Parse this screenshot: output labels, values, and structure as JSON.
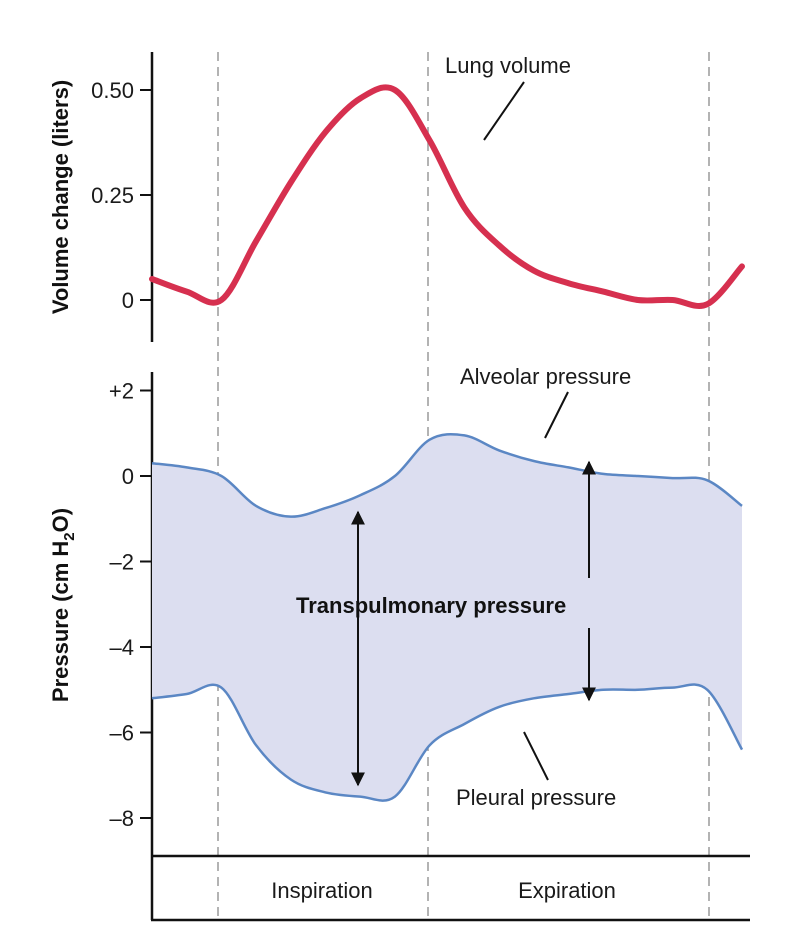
{
  "chart_data": [
    {
      "type": "line",
      "ylabel": "Volume change (liters)",
      "ylim": [
        -0.07,
        0.62
      ],
      "yticks": [
        "0.50",
        "0.25",
        "0"
      ],
      "ytick_values": [
        0.5,
        0.25,
        0
      ],
      "series": [
        {
          "name": "Lung volume",
          "color": "#d6304f",
          "x": [
            0,
            0.5,
            1.0,
            1.5,
            2.0,
            2.5,
            3.0,
            3.5,
            4.0,
            4.5,
            5.0,
            5.5,
            6.0,
            6.5,
            7.0,
            7.5,
            8.0,
            8.5
          ],
          "values": [
            0.05,
            0.02,
            0.0,
            0.14,
            0.28,
            0.4,
            0.48,
            0.5,
            0.38,
            0.22,
            0.13,
            0.07,
            0.04,
            0.02,
            0.0,
            0.0,
            -0.01,
            0.08
          ]
        }
      ]
    },
    {
      "type": "area",
      "ylabel": "Pressure (cm H₂O)",
      "ylim": [
        -8.9,
        2.6
      ],
      "yticks": [
        "+2",
        "0",
        "–2",
        "–4",
        "–6",
        "–8"
      ],
      "ytick_values": [
        2,
        0,
        -2,
        -4,
        -6,
        -8
      ],
      "fill_color": "#dcdef0",
      "series": [
        {
          "name": "Alveolar pressure",
          "color": "#5b87c4",
          "x": [
            0,
            0.5,
            1.0,
            1.5,
            2.0,
            2.5,
            3.0,
            3.5,
            4.0,
            4.5,
            5.0,
            5.5,
            6.0,
            6.5,
            7.0,
            7.5,
            8.0,
            8.5
          ],
          "values": [
            0.3,
            0.2,
            0.0,
            -0.7,
            -0.95,
            -0.75,
            -0.45,
            0.0,
            0.85,
            0.95,
            0.6,
            0.35,
            0.2,
            0.05,
            0.0,
            -0.05,
            -0.1,
            -0.7
          ]
        },
        {
          "name": "Pleural pressure",
          "color": "#5b87c4",
          "x": [
            0,
            0.5,
            1.0,
            1.5,
            2.0,
            2.5,
            3.0,
            3.5,
            4.0,
            4.5,
            5.0,
            5.5,
            6.0,
            6.5,
            7.0,
            7.5,
            8.0,
            8.5
          ],
          "values": [
            -5.2,
            -5.1,
            -4.95,
            -6.3,
            -7.1,
            -7.4,
            -7.5,
            -7.5,
            -6.3,
            -5.8,
            -5.4,
            -5.2,
            -5.1,
            -5.0,
            -5.0,
            -4.95,
            -5.0,
            -6.4
          ]
        }
      ]
    }
  ],
  "annotations": {
    "lung_volume": "Lung volume",
    "alveolar": "Alveolar pressure",
    "pleural": "Pleural pressure",
    "transpulmonary": "Transpulmonary pressure"
  },
  "phases": {
    "inspiration": "Inspiration",
    "expiration": "Expiration"
  }
}
